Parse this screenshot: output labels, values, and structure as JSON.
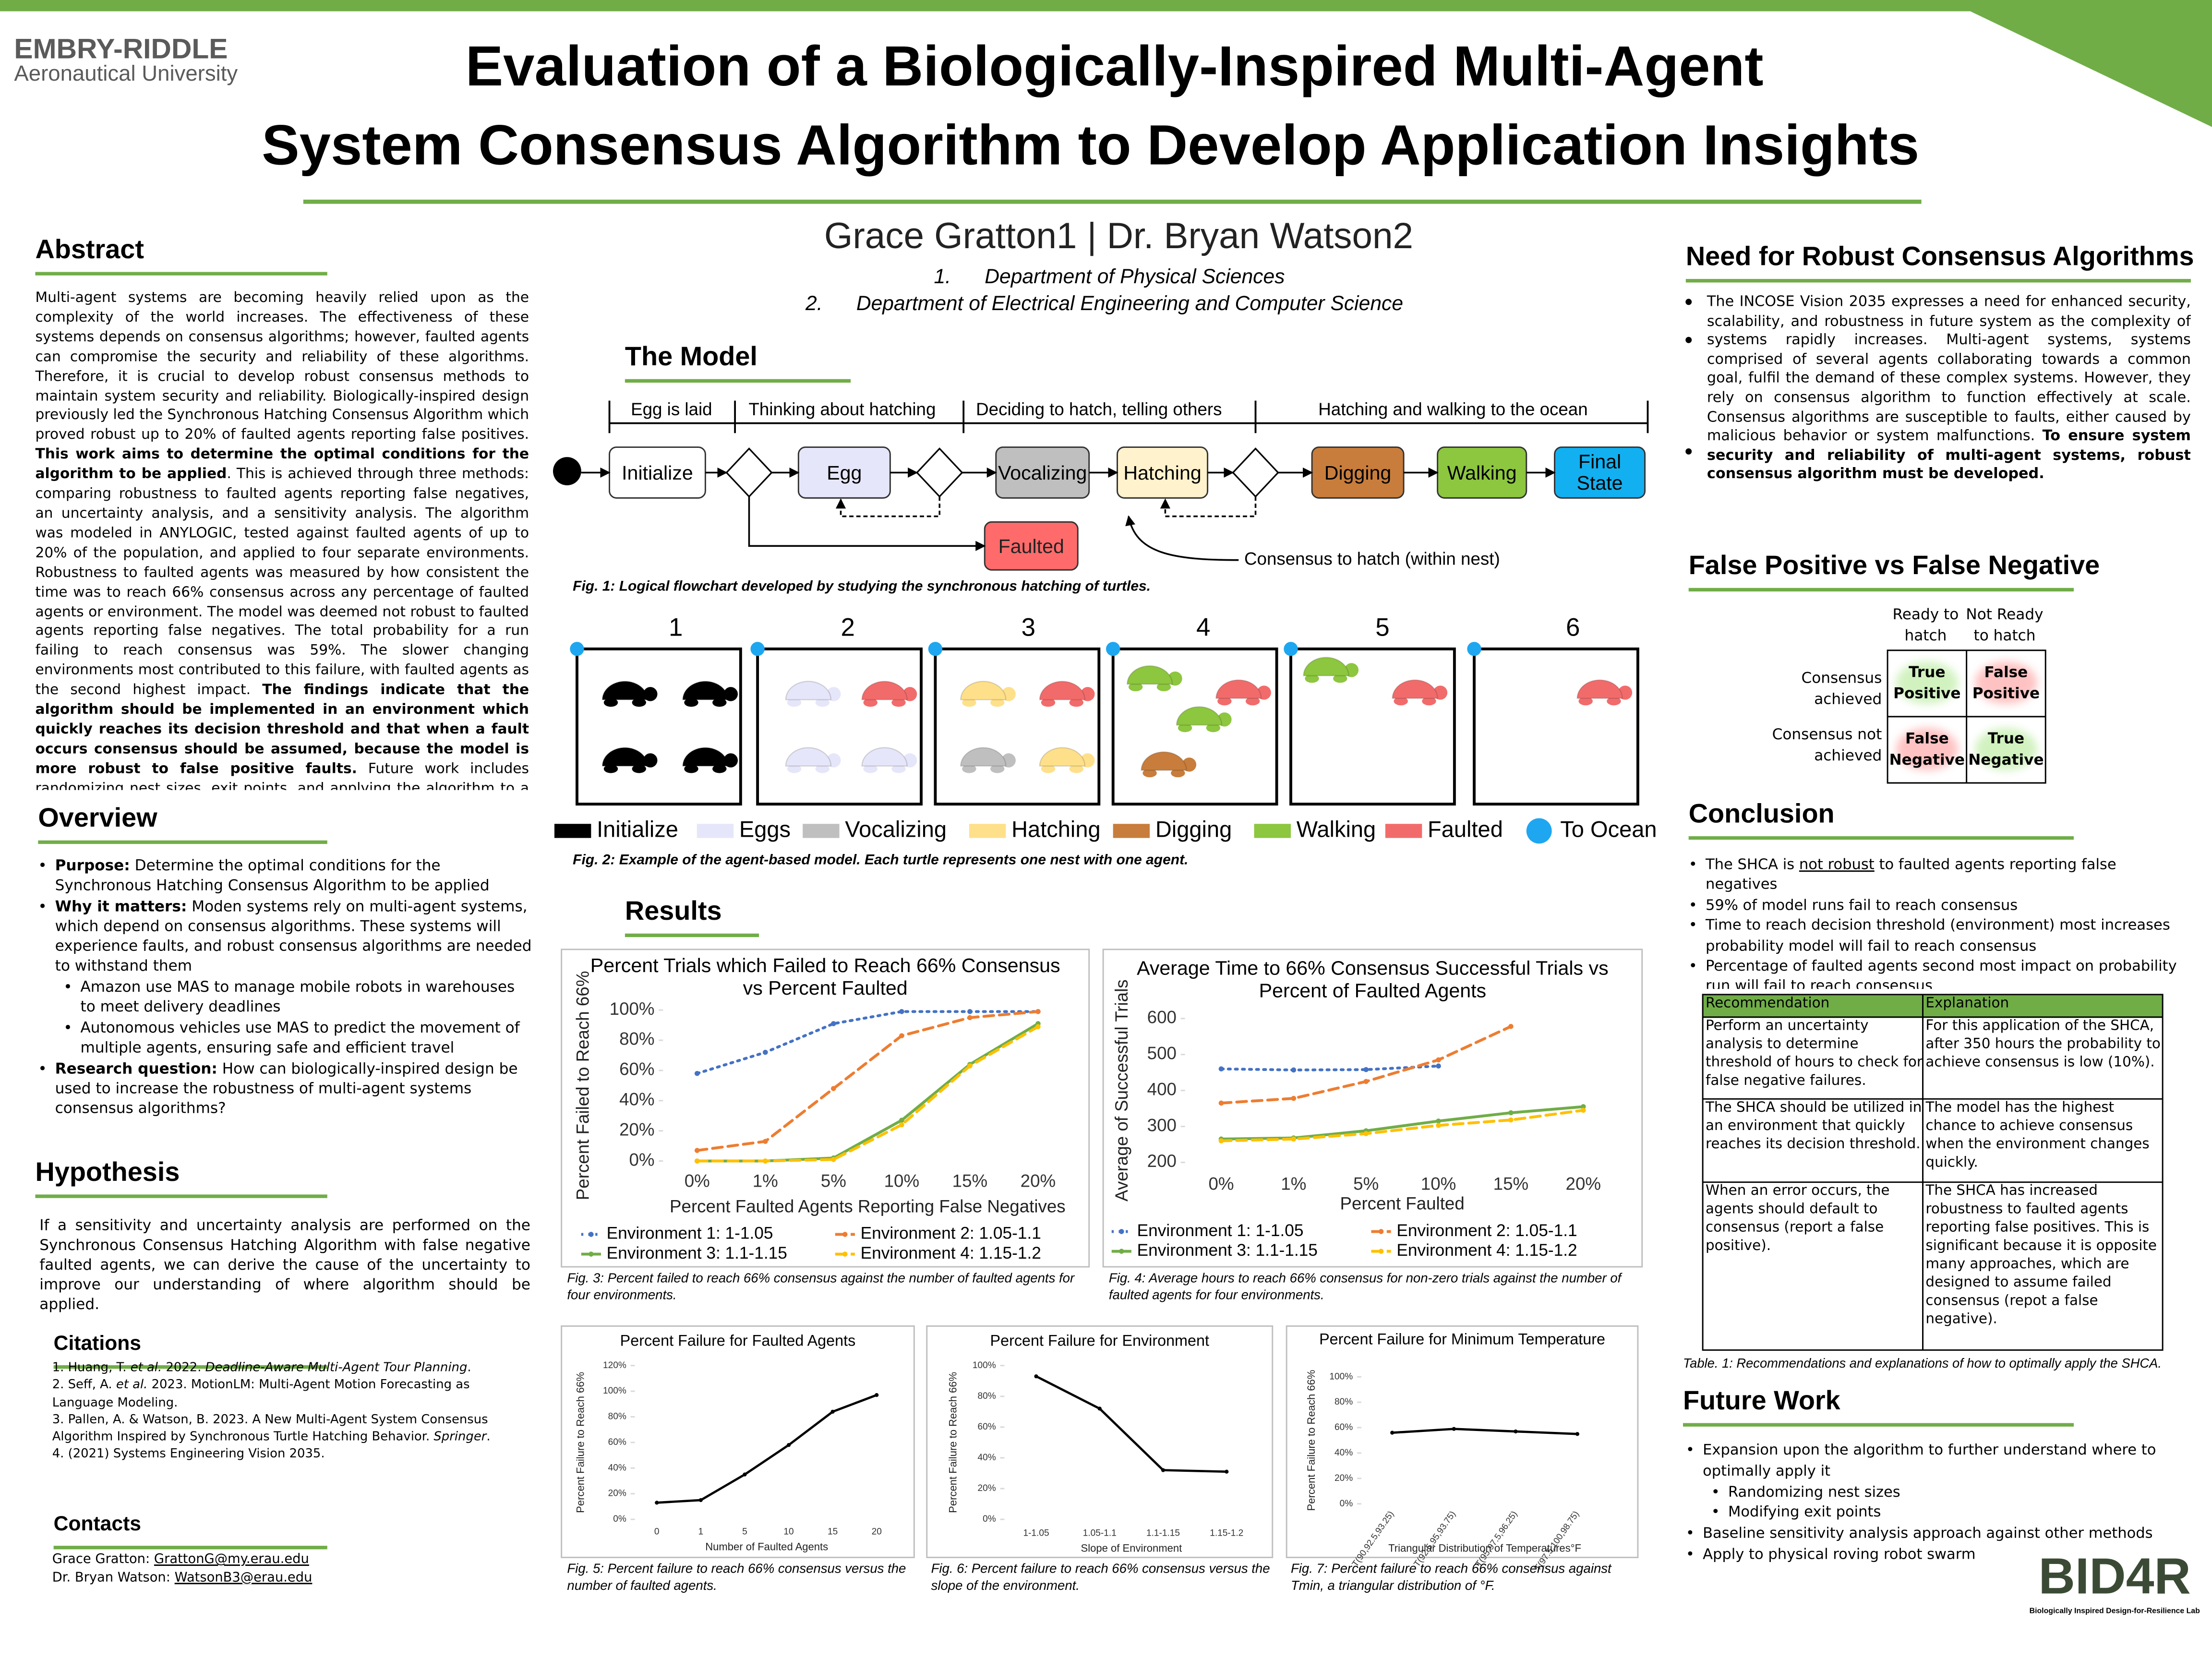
{
  "header": {
    "logo_line1": "EMBRY-RIDDLE",
    "logo_line2": "Aeronautical University",
    "title_line1": "Evaluation of a Biologically-Inspired Multi-Agent",
    "title_line2": "System Consensus Algorithm to Develop Application Insights",
    "authors": "Grace Gratton1 | Dr. Bryan Watson2",
    "affiliations": [
      {
        "num": "1.",
        "text": "Department of Physical Sciences"
      },
      {
        "num": "2.",
        "text": "Department of Electrical Engineering and Computer Science"
      }
    ]
  },
  "abstract": {
    "heading": "Abstract",
    "runs": [
      {
        "text": "Multi-agent systems are becoming heavily relied upon as the complexity of the world increases. The effectiveness of these systems depends on consensus algorithms; however, faulted agents can compromise the security and reliability of these algorithms. Therefore, it is crucial to develop robust consensus methods to maintain system security and reliability. Biologically-inspired design previously led the Synchronous Hatching Consensus Algorithm which proved robust up to 20% of faulted agents reporting false positives. "
      },
      {
        "text": "This work aims to determine the optimal conditions for the algorithm to be applied",
        "style": "bold"
      },
      {
        "text": ". This is achieved through three methods: comparing robustness to faulted agents reporting false negatives, an uncertainty analysis, and a sensitivity analysis. The algorithm was modeled in ANYLOGIC, tested against faulted agents of up to 20% of the population, and applied to four separate environments. Robustness to faulted agents was measured by how consistent the time was to reach 66% consensus across any percentage of faulted agents or environment. The model was deemed not robust to faulted agents reporting false negatives. The total probability for a run failing to reach consensus was 59%. The slower changing environments most contributed to this failure, with faulted agents as the second highest impact. "
      },
      {
        "text": "The findings indicate that the algorithm should be implemented in an environment which quickly reaches its decision threshold and that when a fault occurs consensus should be assumed, because the model is more robust to false positive faults.",
        "style": "bold"
      },
      {
        "text": " Future work includes randomizing nest sizes, exit points, and applying the algorithm to a physical roving swarm."
      }
    ]
  },
  "overview": {
    "heading": "Overview",
    "items": [
      {
        "level": 1,
        "runs": [
          {
            "text": "Purpose:",
            "style": "bold"
          },
          {
            "text": " Determine the optimal conditions for the Synchronous Hatching Consensus Algorithm to be applied"
          }
        ]
      },
      {
        "level": 1,
        "runs": [
          {
            "text": "Why it matters:",
            "style": "bold"
          },
          {
            "text": " Moden systems rely on multi-agent systems, which depend on consensus algorithms. These systems will experience faults, and robust consensus algorithms are needed to withstand them"
          }
        ]
      },
      {
        "level": 2,
        "runs": [
          {
            "text": "Amazon use MAS to manage mobile robots in warehouses to meet delivery deadlines"
          }
        ]
      },
      {
        "level": 2,
        "runs": [
          {
            "text": "Autonomous vehicles use MAS to predict the movement of multiple agents, ensuring safe and efficient travel"
          }
        ]
      },
      {
        "level": 1,
        "runs": [
          {
            "text": "Research question:",
            "style": "bold"
          },
          {
            "text": " How can biologically-inspired design be used to increase the robustness of multi-agent systems consensus algorithms?"
          }
        ]
      }
    ]
  },
  "hypothesis": {
    "heading": "Hypothesis",
    "text": "If a sensitivity and uncertainty analysis are performed on the Synchronous Consensus Hatching Algorithm with false negative faulted agents, we can derive the cause of the uncertainty to improve our understanding of where algorithm should be applied."
  },
  "citations": {
    "heading": "Citations",
    "items": [
      [
        {
          "text": "1. Huang, T. "
        },
        {
          "text": "et al.",
          "style": "italic"
        },
        {
          "text": " 2022. "
        },
        {
          "text": "Deadline-Aware Multi-Agent Tour Planning",
          "style": "italic"
        },
        {
          "text": "."
        }
      ],
      [
        {
          "text": "2. Seff, A. "
        },
        {
          "text": "et al.",
          "style": "italic"
        },
        {
          "text": " 2023. MotionLM: Multi-Agent Motion Forecasting as Language Modeling."
        }
      ],
      [
        {
          "text": "3. Pallen, A. & Watson, B. 2023. A New Multi-Agent System Consensus Algorithm Inspired by Synchronous Turtle Hatching Behavior. "
        },
        {
          "text": "Springer",
          "style": "italic"
        },
        {
          "text": "."
        }
      ],
      [
        {
          "text": "4. (2021) Systems Engineering Vision 2035."
        }
      ]
    ]
  },
  "contacts": {
    "heading": "Contacts",
    "items": [
      [
        {
          "text": "Grace Gratton: "
        },
        {
          "text": "GrattonG@my.erau.edu",
          "style": "underline"
        }
      ],
      [
        {
          "text": "Dr. Bryan Watson: "
        },
        {
          "text": "WatsonB3@erau.edu",
          "style": "underline"
        }
      ]
    ]
  },
  "model": {
    "heading": "The Model",
    "phases": [
      "Egg is laid",
      "Thinking about hatching",
      "Deciding to hatch, telling others",
      "Hatching and walking to the ocean"
    ],
    "nodes": [
      {
        "label": "Initialize",
        "color": "#ffffff"
      },
      {
        "label": "Egg",
        "color": "#e6e6fa"
      },
      {
        "label": "Vocalizing",
        "color": "#bfbfbf"
      },
      {
        "label": "Hatching",
        "color": "#fff2cc"
      },
      {
        "label": "Digging",
        "color": "#c87d3c"
      },
      {
        "label": "Walking",
        "color": "#8dc63f"
      },
      {
        "label": "Final State",
        "color": "#12b0f0"
      },
      {
        "label": "Faulted",
        "color": "#ff6b6b"
      }
    ],
    "consensus_note": "Consensus to hatch (within nest)",
    "caption1": "Fig. 1: Logical flowchart developed by studying the synchronous hatching of turtles.",
    "panels": [
      "1",
      "2",
      "3",
      "4",
      "5",
      "6"
    ],
    "legend": [
      {
        "label": "Initialize",
        "color": "#000000"
      },
      {
        "label": "Eggs",
        "color": "#e6e6fa"
      },
      {
        "label": "Vocalizing",
        "color": "#bfbfbf"
      },
      {
        "label": "Hatching",
        "color": "#ffe08a"
      },
      {
        "label": "Digging",
        "color": "#c87d3c"
      },
      {
        "label": "Walking",
        "color": "#8dc63f"
      },
      {
        "label": "Faulted",
        "color": "#f26b6b"
      },
      {
        "label": "To Ocean",
        "color": "#1ea7f0"
      }
    ],
    "caption2": "Fig. 2: Example of the agent-based model. Each turtle represents one nest with one agent."
  },
  "results": {
    "heading": "Results"
  },
  "chart_data": [
    {
      "type": "line",
      "title": "Percent Trials which Failed to Reach 66% Consensus vs Percent Faulted",
      "x_label": "Percent Faulted Agents Reporting False Negatives",
      "y_label": "Percent Failed to Reach 66%",
      "categories": [
        "0%",
        "1%",
        "5%",
        "10%",
        "15%",
        "20%"
      ],
      "ylim": [
        0,
        100
      ],
      "yticks": [
        {
          "value": 0,
          "label": "0%"
        },
        {
          "value": 20,
          "label": "20%"
        },
        {
          "value": 40,
          "label": "40%"
        },
        {
          "value": 60,
          "label": "60%"
        },
        {
          "value": 80,
          "label": "80%"
        },
        {
          "value": 100,
          "label": "100%"
        }
      ],
      "series": [
        {
          "name": "Environment 1: 1-1.05",
          "color": "#4472c4",
          "dash": "dotted",
          "values": [
            58,
            72,
            91,
            99,
            99,
            99
          ]
        },
        {
          "name": "Environment 2: 1.05-1.1",
          "color": "#ed7d31",
          "dash": "dashed",
          "values": [
            7,
            13,
            48,
            83,
            95,
            99
          ]
        },
        {
          "name": "Environment 3: 1.1-1.15",
          "color": "#70ad47",
          "dash": "solid",
          "values": [
            0,
            0,
            2,
            27,
            64,
            91
          ]
        },
        {
          "name": "Environment 4: 1.15-1.2",
          "color": "#ffc000",
          "dash": "dashed",
          "values": [
            0,
            0,
            1,
            24,
            63,
            89
          ]
        }
      ],
      "caption": "Fig. 3: Percent failed to reach 66% consensus against the number of faulted agents for four environments."
    },
    {
      "type": "line",
      "title": "Average Time to 66% Consensus Successful Trials vs Percent of Faulted Agents",
      "x_label": "Percent Faulted",
      "y_label": "Average of Successful Trials",
      "categories": [
        "0%",
        "1%",
        "5%",
        "10%",
        "15%",
        "20%"
      ],
      "ylim": [
        200,
        600
      ],
      "yticks": [
        200,
        300,
        400,
        500,
        600
      ],
      "series": [
        {
          "name": "Environment 1: 1-1.05",
          "color": "#4472c4",
          "dash": "dotted",
          "values": [
            460,
            457,
            458,
            468,
            null,
            null
          ]
        },
        {
          "name": "Environment 2: 1.05-1.1",
          "color": "#ed7d31",
          "dash": "dashed",
          "values": [
            365,
            378,
            425,
            485,
            578,
            null
          ]
        },
        {
          "name": "Environment 3: 1.1-1.15",
          "color": "#70ad47",
          "dash": "solid",
          "values": [
            265,
            268,
            288,
            315,
            338,
            355
          ]
        },
        {
          "name": "Environment 4: 1.15-1.2",
          "color": "#ffc000",
          "dash": "dashed",
          "values": [
            260,
            265,
            280,
            303,
            318,
            345
          ]
        }
      ],
      "caption": "Fig. 4: Average hours to reach 66% consensus for non-zero trials against the number of faulted agents for four environments."
    },
    {
      "type": "line",
      "title": "Percent Failure for Faulted Agents",
      "x_label": "Number of Faulted Agents",
      "y_label": "Percent Failure to Reach 66%",
      "categories": [
        "0",
        "1",
        "5",
        "10",
        "15",
        "20"
      ],
      "ylim": [
        0,
        120
      ],
      "yticks": [
        {
          "value": 0,
          "label": "0%"
        },
        {
          "value": 20,
          "label": "20%"
        },
        {
          "value": 40,
          "label": "40%"
        },
        {
          "value": 60,
          "label": "60%"
        },
        {
          "value": 80,
          "label": "80%"
        },
        {
          "value": 100,
          "label": "100%"
        },
        {
          "value": 120,
          "label": "120%"
        }
      ],
      "series": [
        {
          "color": "#000000",
          "dash": "solid",
          "values": [
            13,
            15,
            35,
            58,
            84,
            97
          ]
        }
      ],
      "caption": "Fig. 5: Percent failure to reach 66% consensus versus the number of faulted agents."
    },
    {
      "type": "line",
      "title": "Percent Failure for Environment",
      "x_label": "Slope of Environment",
      "y_label": "Percent Failure to Reach 66%",
      "categories": [
        "1-1.05",
        "1.05-1.1",
        "1.1-1.15",
        "1.15-1.2"
      ],
      "ylim": [
        0,
        100
      ],
      "yticks": [
        {
          "value": 0,
          "label": "0%"
        },
        {
          "value": 20,
          "label": "20%"
        },
        {
          "value": 40,
          "label": "40%"
        },
        {
          "value": 60,
          "label": "60%"
        },
        {
          "value": 80,
          "label": "80%"
        },
        {
          "value": 100,
          "label": "100%"
        }
      ],
      "series": [
        {
          "color": "#000000",
          "dash": "solid",
          "values": [
            93,
            72,
            32,
            31
          ]
        }
      ],
      "caption": "Fig. 6: Percent failure to reach 66% consensus versus the slope of the environment."
    },
    {
      "type": "line",
      "title": "Percent Failure for Minimum Temperature",
      "x_label": "Triangular Distribution of Temperatures°F",
      "y_label": "Percent Failure to Reach 66%",
      "categories": [
        "T(90,92.5,93.25)",
        "T(92.5,95,93.75)",
        "T(95,97.5,96.25)",
        "T(97.5,100,98.75)"
      ],
      "ylim": [
        0,
        100
      ],
      "yticks": [
        {
          "value": 0,
          "label": "0%"
        },
        {
          "value": 20,
          "label": "20%"
        },
        {
          "value": 40,
          "label": "40%"
        },
        {
          "value": 60,
          "label": "60%"
        },
        {
          "value": 80,
          "label": "80%"
        },
        {
          "value": 100,
          "label": "100%"
        }
      ],
      "series": [
        {
          "color": "#000000",
          "dash": "solid",
          "values": [
            56,
            59,
            57,
            55
          ]
        }
      ],
      "caption": "Fig. 7: Percent failure to reach 66% consensus against Tmin, a triangular distribution of °F."
    }
  ],
  "need": {
    "heading": "Need for Robust Consensus Algorithms",
    "runs": [
      {
        "text": "The INCOSE Vision 2035 expresses a need for enhanced security, scalability, and robustness in future system as the complexity of systems rapidly increases. Multi-agent systems, systems comprised of several agents collaborating towards a common goal, fulfil the demand of these complex systems. However, they rely on consensus algorithm to function effectively at scale. Consensus algorithms are susceptible to faults, either caused by malicious behavior or system malfunctions. "
      },
      {
        "text": "To ensure system security and reliability of multi-agent systems, robust consensus algorithm must be developed.",
        "style": "bold"
      }
    ]
  },
  "fpfn": {
    "heading": "False Positive vs False Negative",
    "col_headers": [
      "Ready to hatch",
      "Not Ready to hatch"
    ],
    "row_headers": [
      "Consensus achieved",
      "Consensus not achieved"
    ],
    "cells": [
      [
        "True Positive",
        "False Positive"
      ],
      [
        "False Negative",
        "True Negative"
      ]
    ]
  },
  "conclusion": {
    "heading": "Conclusion",
    "items": [
      [
        {
          "text": "The SHCA is "
        },
        {
          "text": "not robust",
          "style": "underline"
        },
        {
          "text": " to faulted agents reporting false negatives"
        }
      ],
      [
        {
          "text": "59% of model runs fail to reach consensus"
        }
      ],
      [
        {
          "text": "Time to reach decision threshold (environment) most increases probability model will fail to reach consensus"
        }
      ],
      [
        {
          "text": "Percentage of faulted agents second most impact on probability run will fail to reach consensus"
        }
      ]
    ]
  },
  "table": {
    "header": [
      "Recommendation",
      "Explanation"
    ],
    "rows": [
      [
        "Perform an uncertainty analysis to determine threshold of hours to check for false negative failures.",
        "For this application of the SHCA, after 350 hours the probability to achieve consensus is low (10%)."
      ],
      [
        "The SHCA should be utilized in an environment that quickly reaches its decision threshold.",
        "The model has the highest chance to achieve consensus when the environment changes quickly."
      ],
      [
        "When an error occurs, the agents should default to consensus (report a false positive).",
        "The SHCA has increased robustness to faulted agents reporting false positives. This is significant because it is opposite many approaches, which are designed to assume failed consensus (repot a false negative)."
      ]
    ],
    "caption": "Table. 1: Recommendations and explanations of how to optimally apply the SHCA."
  },
  "future": {
    "heading": "Future Work",
    "items": [
      {
        "level": 1,
        "text": "Expansion upon the algorithm to further understand where to optimally apply it"
      },
      {
        "level": 2,
        "text": "Randomizing nest sizes"
      },
      {
        "level": 2,
        "text": "Modifying exit points"
      },
      {
        "level": 1,
        "text": "Baseline sensitivity analysis approach against other methods"
      },
      {
        "level": 1,
        "text": "Apply to physical roving robot swarm"
      }
    ]
  },
  "lab": {
    "name": "BID4R",
    "full": "Biologically Inspired Design-for-Resilience Lab"
  }
}
